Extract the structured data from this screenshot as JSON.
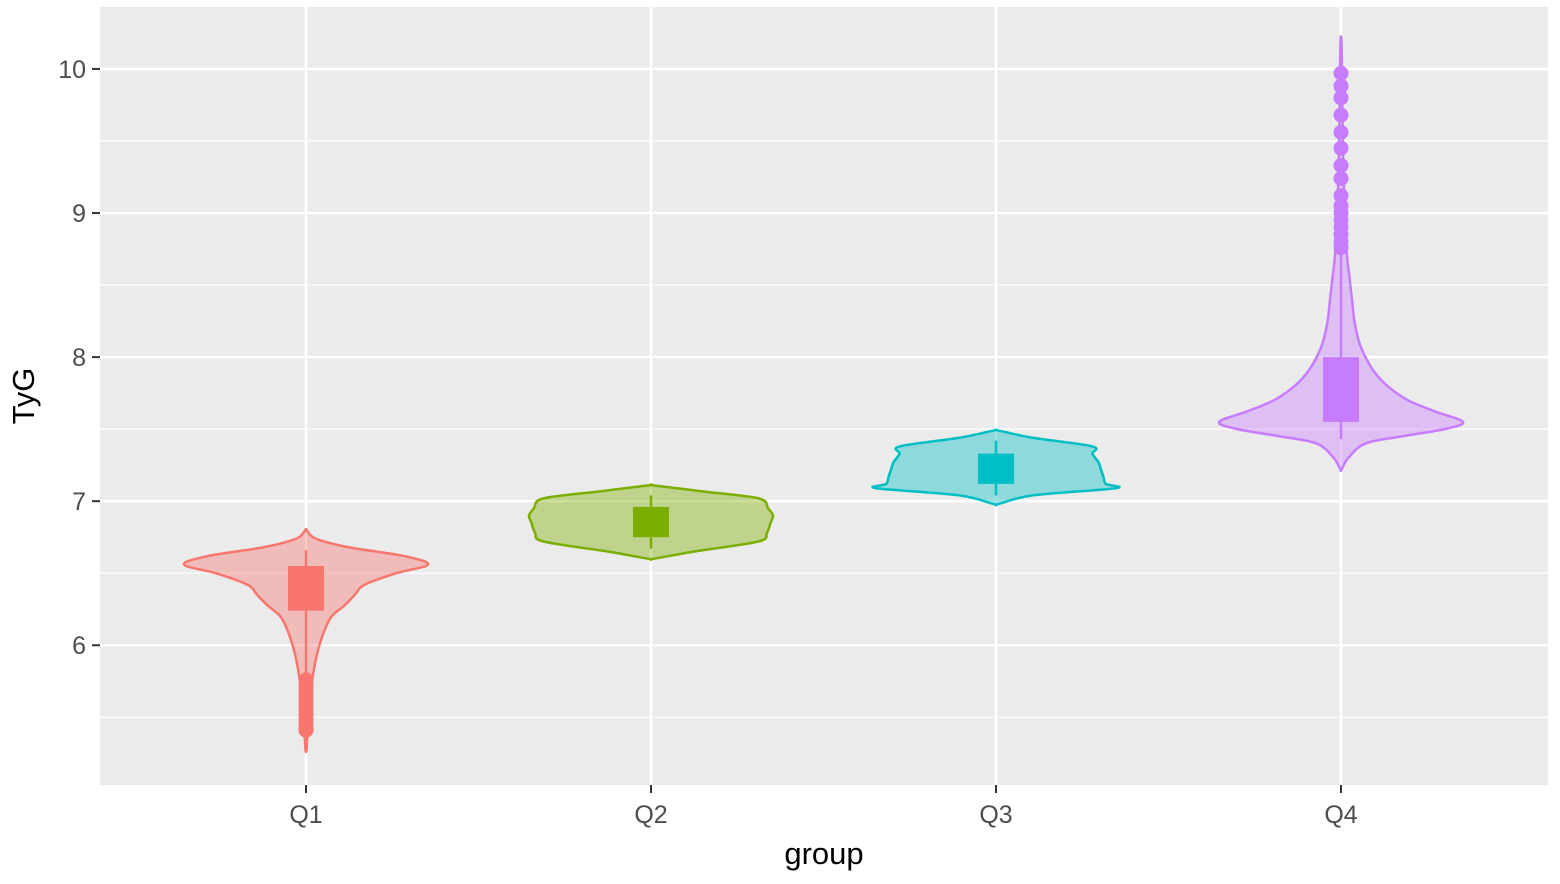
{
  "chart_data": {
    "type": "violin",
    "xlabel": "group",
    "ylabel": "TyG",
    "ylim": [
      5.03,
      10.43
    ],
    "y_ticks": [
      6,
      7,
      8,
      9,
      10
    ],
    "y_minor_ticks": [
      5.5,
      6.5,
      7.5,
      8.5,
      9.5
    ],
    "grid": true,
    "legend": "none",
    "background": "#ebebeb",
    "categories": [
      "Q1",
      "Q2",
      "Q3",
      "Q4"
    ],
    "groups": [
      {
        "label": "Q1",
        "color": "#f8766d",
        "box": {
          "q1": 6.24,
          "median": 6.38,
          "q3": 6.55,
          "whisker_low": 5.78,
          "whisker_high": 6.66
        },
        "outliers": [
          5.76,
          5.73,
          5.7,
          5.67,
          5.64,
          5.61,
          5.58,
          5.55,
          5.52,
          5.49,
          5.46,
          5.43,
          5.41
        ],
        "density": [
          [
            5.28,
            0.005
          ],
          [
            5.45,
            0.015
          ],
          [
            5.6,
            0.03
          ],
          [
            5.75,
            0.05
          ],
          [
            5.9,
            0.08
          ],
          [
            6.0,
            0.11
          ],
          [
            6.1,
            0.15
          ],
          [
            6.2,
            0.21
          ],
          [
            6.28,
            0.32
          ],
          [
            6.35,
            0.4
          ],
          [
            6.42,
            0.48
          ],
          [
            6.5,
            0.74
          ],
          [
            6.56,
            1.0
          ],
          [
            6.62,
            0.8
          ],
          [
            6.68,
            0.35
          ],
          [
            6.74,
            0.08
          ],
          [
            6.8,
            0.005
          ]
        ]
      },
      {
        "label": "Q2",
        "color": "#7cae00",
        "box": {
          "q1": 6.75,
          "median": 6.85,
          "q3": 6.96,
          "whisker_low": 6.67,
          "whisker_high": 7.04
        },
        "outliers": [],
        "density": [
          [
            6.6,
            0.02
          ],
          [
            6.65,
            0.35
          ],
          [
            6.72,
            0.88
          ],
          [
            6.78,
            0.95
          ],
          [
            6.85,
            0.98
          ],
          [
            6.9,
            1.0
          ],
          [
            6.95,
            0.96
          ],
          [
            7.02,
            0.88
          ],
          [
            7.07,
            0.4
          ],
          [
            7.11,
            0.02
          ]
        ]
      },
      {
        "label": "Q3",
        "color": "#00bfc4",
        "box": {
          "q1": 7.12,
          "median": 7.22,
          "q3": 7.33,
          "whisker_low": 7.04,
          "whisker_high": 7.42
        },
        "outliers": [],
        "density": [
          [
            6.98,
            0.02
          ],
          [
            7.04,
            0.3
          ],
          [
            7.09,
            0.98
          ],
          [
            7.12,
            0.9
          ],
          [
            7.17,
            0.88
          ],
          [
            7.22,
            0.86
          ],
          [
            7.27,
            0.84
          ],
          [
            7.33,
            0.79
          ],
          [
            7.38,
            0.79
          ],
          [
            7.44,
            0.3
          ],
          [
            7.49,
            0.02
          ]
        ]
      },
      {
        "label": "Q4",
        "color": "#c77cff",
        "box": {
          "q1": 7.55,
          "median": 7.76,
          "q3": 8.0,
          "whisker_low": 7.43,
          "whisker_high": 8.73
        },
        "outliers": [
          8.76,
          8.8,
          8.85,
          8.9,
          8.95,
          9.0,
          9.05,
          9.12,
          9.24,
          9.33,
          9.45,
          9.56,
          9.68,
          9.8,
          9.88,
          9.97
        ],
        "density": [
          [
            7.22,
            0.005
          ],
          [
            7.3,
            0.06
          ],
          [
            7.4,
            0.2
          ],
          [
            7.45,
            0.5
          ],
          [
            7.5,
            0.85
          ],
          [
            7.55,
            1.0
          ],
          [
            7.62,
            0.78
          ],
          [
            7.7,
            0.55
          ],
          [
            7.8,
            0.38
          ],
          [
            7.9,
            0.27
          ],
          [
            8.0,
            0.2
          ],
          [
            8.1,
            0.15
          ],
          [
            8.25,
            0.11
          ],
          [
            8.4,
            0.09
          ],
          [
            8.55,
            0.07
          ],
          [
            8.7,
            0.05
          ],
          [
            9.0,
            0.03
          ],
          [
            9.5,
            0.015
          ],
          [
            10.0,
            0.008
          ],
          [
            10.2,
            0.003
          ]
        ]
      }
    ]
  }
}
